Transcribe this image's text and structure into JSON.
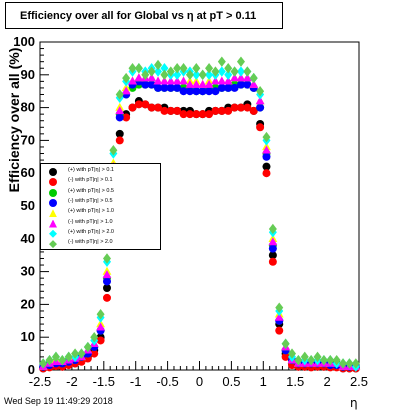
{
  "title": "Efficiency over all for Global vs    η at pT > 0.11",
  "footer": "Wed Sep 19 11:49:29 2018",
  "chart_data": {
    "type": "scatter",
    "title": "Efficiency over all for Global vs    η at pT > 0.11",
    "xlabel": "η",
    "ylabel": "Efficiency over all (%)",
    "xlim": [
      -2.5,
      2.5
    ],
    "ylim": [
      0,
      100
    ],
    "xticks": [
      "-2.5",
      "-2",
      "-1.5",
      "-1",
      "-0.5",
      "0",
      "0.5",
      "1",
      "1.5",
      "2",
      "2.5"
    ],
    "yticks": [
      "0",
      "10",
      "20",
      "30",
      "40",
      "50",
      "60",
      "70",
      "80",
      "90",
      "100"
    ],
    "grid": false,
    "legend_position": "left-middle",
    "x": [
      -2.45,
      -2.35,
      -2.25,
      -2.15,
      -2.05,
      -1.95,
      -1.85,
      -1.75,
      -1.65,
      -1.55,
      -1.45,
      -1.35,
      -1.25,
      -1.15,
      -1.05,
      -0.95,
      -0.85,
      -0.75,
      -0.65,
      -0.55,
      -0.45,
      -0.35,
      -0.25,
      -0.15,
      -0.05,
      0.05,
      0.15,
      0.25,
      0.35,
      0.45,
      0.55,
      0.65,
      0.75,
      0.85,
      0.95,
      1.05,
      1.15,
      1.25,
      1.35,
      1.45,
      1.55,
      1.65,
      1.75,
      1.85,
      1.95,
      2.05,
      2.15,
      2.25,
      2.35,
      2.45
    ],
    "series": [
      {
        "name": "(+) with pT|η| > 0.1",
        "color": "#000000",
        "marker": "circle",
        "values": [
          0.5,
          1,
          1.5,
          1,
          2,
          2,
          3,
          4,
          6,
          10,
          25,
          55,
          72,
          78,
          80,
          82,
          81,
          80,
          80,
          80,
          79,
          79,
          79,
          79,
          78,
          78,
          79,
          79,
          79,
          80,
          80,
          80,
          81,
          79,
          75,
          62,
          35,
          14,
          5,
          2,
          1,
          1,
          1,
          1,
          1,
          1,
          1,
          0.5,
          0.5,
          0.5
        ]
      },
      {
        "name": "(-) with pT|η| > 0.1",
        "color": "#ff0000",
        "marker": "circle",
        "values": [
          0.5,
          0.8,
          1.2,
          1,
          1.5,
          2,
          2.5,
          3.5,
          5,
          9,
          22,
          52,
          70,
          77,
          80,
          81,
          81,
          80,
          80,
          79,
          79,
          79,
          78,
          78,
          78,
          78,
          78,
          79,
          79,
          79,
          80,
          80,
          80,
          79,
          74,
          60,
          33,
          12,
          4,
          1.5,
          1,
          1,
          0.8,
          1,
          1,
          0.8,
          0.8,
          0.5,
          0.5,
          0.5
        ]
      },
      {
        "name": "(+) with pT|η| > 0.5",
        "color": "#00cc00",
        "marker": "circle",
        "values": [
          1,
          2,
          2.5,
          2,
          3,
          3,
          4,
          5,
          7,
          12,
          28,
          60,
          78,
          84,
          86,
          87,
          87,
          87,
          86,
          86,
          86,
          86,
          86,
          86,
          85,
          85,
          86,
          86,
          86,
          86,
          87,
          87,
          87,
          86,
          80,
          66,
          38,
          15,
          6,
          3,
          2,
          2,
          2,
          2,
          2,
          2,
          2,
          1,
          1,
          1
        ]
      },
      {
        "name": "(-) with pT|η| > 0.5",
        "color": "#0000ff",
        "marker": "circle",
        "values": [
          1,
          1.5,
          2,
          2,
          2.5,
          3,
          4,
          5,
          7,
          12,
          27,
          58,
          77,
          84,
          87,
          88,
          87,
          87,
          86,
          86,
          86,
          86,
          85,
          85,
          85,
          85,
          85,
          85,
          86,
          86,
          86,
          87,
          87,
          86,
          80,
          65,
          37,
          15,
          6,
          3,
          2,
          2,
          2,
          2,
          2,
          1.5,
          1.5,
          1,
          1,
          1
        ]
      },
      {
        "name": "(+) with pT|η| > 1.0",
        "color": "#ffff00",
        "marker": "triangle",
        "values": [
          1,
          2,
          3,
          3,
          3,
          4,
          4,
          6,
          8,
          14,
          30,
          63,
          80,
          86,
          88,
          89,
          89,
          89,
          88,
          88,
          88,
          88,
          88,
          88,
          88,
          87,
          88,
          88,
          88,
          88,
          89,
          89,
          89,
          87,
          82,
          68,
          40,
          17,
          7,
          3,
          2,
          2,
          2,
          2,
          2,
          2,
          2,
          1,
          1,
          1
        ]
      },
      {
        "name": "(-) with pT|η| > 1.0",
        "color": "#ff00ff",
        "marker": "triangle",
        "values": [
          1,
          2,
          2.5,
          2.5,
          3,
          3.5,
          4,
          6,
          8,
          13,
          29,
          62,
          79,
          85,
          88,
          89,
          89,
          89,
          88,
          88,
          88,
          88,
          88,
          87,
          87,
          87,
          87,
          88,
          88,
          88,
          89,
          89,
          89,
          87,
          82,
          67,
          39,
          16,
          7,
          3,
          2,
          2,
          2,
          2,
          2,
          2,
          2,
          1,
          1,
          1
        ]
      },
      {
        "name": "(+) with pT|η| > 2.0",
        "color": "#00ffff",
        "marker": "diamond",
        "values": [
          2,
          3,
          4,
          3,
          4,
          4,
          5,
          7,
          9,
          16,
          33,
          66,
          83,
          88,
          91,
          92,
          91,
          92,
          91,
          92,
          90,
          90,
          91,
          91,
          90,
          90,
          90,
          90,
          91,
          90,
          91,
          91,
          91,
          89,
          84,
          70,
          42,
          18,
          8,
          4,
          3,
          3,
          3,
          3,
          3,
          3,
          2,
          2,
          2,
          1
        ]
      },
      {
        "name": "(-) with pT|η| > 2.0",
        "color": "#66cc55",
        "marker": "diamond",
        "values": [
          2,
          3,
          4,
          3,
          4,
          5,
          5,
          7,
          10,
          17,
          34,
          67,
          84,
          89,
          92,
          92,
          90,
          91,
          93,
          90,
          91,
          92,
          92,
          90,
          92,
          90,
          92,
          91,
          94,
          92,
          91,
          94,
          91,
          89,
          85,
          71,
          43,
          19,
          8,
          5,
          3,
          4,
          3,
          4,
          3,
          3,
          3,
          2,
          2,
          2
        ]
      }
    ]
  }
}
